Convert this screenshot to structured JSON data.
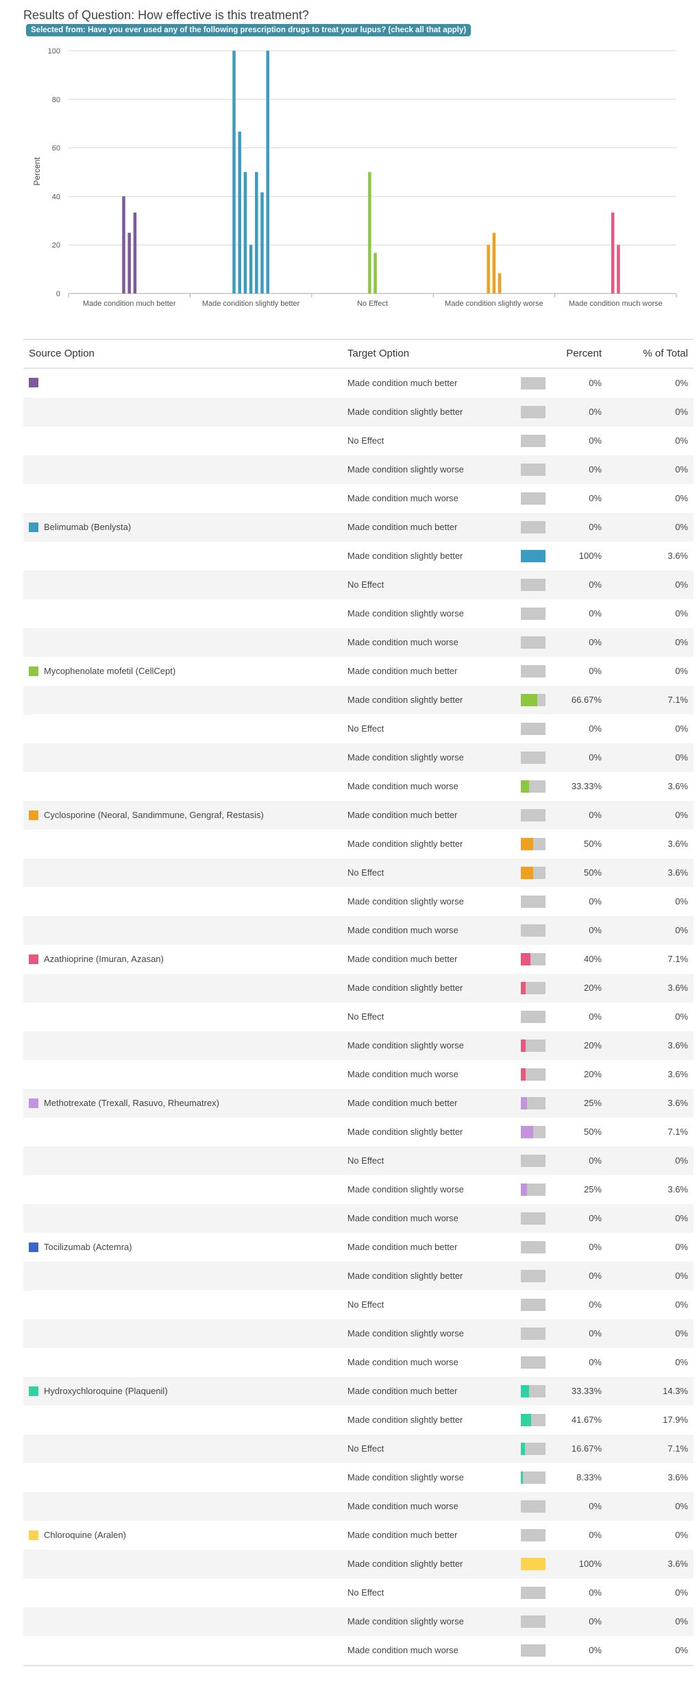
{
  "header": {
    "title": "Results of Question: How effective is this treatment?",
    "filter_pill": "Selected from: Have you ever used any of the following prescription drugs to treat your lupus? (check all that apply)"
  },
  "chart_data": {
    "type": "bar",
    "ylabel": "Percent",
    "ylim": [
      0,
      100
    ],
    "yticks": [
      "0",
      "20",
      "40",
      "60",
      "80",
      "100"
    ],
    "grid": true,
    "categories": [
      "Made condition much better",
      "Made condition slightly better",
      "No Effect",
      "Made condition slightly worse",
      "Made condition much worse"
    ],
    "series": [
      {
        "color": "#7c5a9b",
        "values": [
          0,
          0,
          0,
          0,
          0
        ]
      },
      {
        "color": "#3b9cc1",
        "values": [
          0,
          100,
          0,
          0,
          0
        ]
      },
      {
        "color": "#8dc63f",
        "values": [
          0,
          66.67,
          0,
          0,
          33.33
        ]
      },
      {
        "color": "#f0a020",
        "values": [
          0,
          50,
          50,
          0,
          0
        ]
      },
      {
        "color": "#e8587e",
        "values": [
          40,
          20,
          0,
          20,
          20
        ]
      },
      {
        "color": "#c493e0",
        "values": [
          25,
          50,
          0,
          25,
          0
        ]
      },
      {
        "color": "#3a66c8",
        "values": [
          0,
          0,
          0,
          0,
          0
        ]
      },
      {
        "color": "#2fd3a3",
        "values": [
          33.33,
          41.67,
          16.67,
          8.33,
          0
        ]
      },
      {
        "color": "#fcd24e",
        "values": [
          0,
          100,
          0,
          0,
          0
        ]
      }
    ],
    "bars_drawn": [
      {
        "group": 0,
        "color": "#7c5a9b",
        "values": [
          40,
          25,
          33.33
        ]
      },
      {
        "group": 1,
        "color": "#3b9cc1",
        "values": [
          100,
          66.67,
          50,
          20,
          50,
          41.67,
          100
        ]
      },
      {
        "group": 2,
        "color": "#8dc63f",
        "values": [
          50,
          16.67
        ]
      },
      {
        "group": 3,
        "color": "#f0a020",
        "values": [
          20,
          25,
          8.33
        ]
      },
      {
        "group": 4,
        "color": "#e8587e",
        "values": [
          33.33,
          20
        ]
      }
    ]
  },
  "table": {
    "headers": {
      "source": "Source Option",
      "target": "Target Option",
      "percent": "Percent",
      "total": "% of Total"
    },
    "groups": [
      {
        "source": "",
        "color": "#7c5a9b",
        "rows": [
          {
            "target": "Made condition much better",
            "percent": "0%",
            "total": "0%",
            "fill": 0
          },
          {
            "target": "Made condition slightly better",
            "percent": "0%",
            "total": "0%",
            "fill": 0
          },
          {
            "target": "No Effect",
            "percent": "0%",
            "total": "0%",
            "fill": 0
          },
          {
            "target": "Made condition slightly worse",
            "percent": "0%",
            "total": "0%",
            "fill": 0
          },
          {
            "target": "Made condition much worse",
            "percent": "0%",
            "total": "0%",
            "fill": 0
          }
        ]
      },
      {
        "source": "Belimumab (Benlysta)",
        "color": "#3b9cc1",
        "rows": [
          {
            "target": "Made condition much better",
            "percent": "0%",
            "total": "0%",
            "fill": 0
          },
          {
            "target": "Made condition slightly better",
            "percent": "100%",
            "total": "3.6%",
            "fill": 100
          },
          {
            "target": "No Effect",
            "percent": "0%",
            "total": "0%",
            "fill": 0
          },
          {
            "target": "Made condition slightly worse",
            "percent": "0%",
            "total": "0%",
            "fill": 0
          },
          {
            "target": "Made condition much worse",
            "percent": "0%",
            "total": "0%",
            "fill": 0
          }
        ]
      },
      {
        "source": "Mycophenolate mofetil (CellCept)",
        "color": "#8dc63f",
        "rows": [
          {
            "target": "Made condition much better",
            "percent": "0%",
            "total": "0%",
            "fill": 0
          },
          {
            "target": "Made condition slightly better",
            "percent": "66.67%",
            "total": "7.1%",
            "fill": 66.67
          },
          {
            "target": "No Effect",
            "percent": "0%",
            "total": "0%",
            "fill": 0
          },
          {
            "target": "Made condition slightly worse",
            "percent": "0%",
            "total": "0%",
            "fill": 0
          },
          {
            "target": "Made condition much worse",
            "percent": "33.33%",
            "total": "3.6%",
            "fill": 33.33
          }
        ]
      },
      {
        "source": "Cyclosporine (Neoral, Sandimmune, Gengraf, Restasis)",
        "color": "#f0a020",
        "rows": [
          {
            "target": "Made condition much better",
            "percent": "0%",
            "total": "0%",
            "fill": 0
          },
          {
            "target": "Made condition slightly better",
            "percent": "50%",
            "total": "3.6%",
            "fill": 50
          },
          {
            "target": "No Effect",
            "percent": "50%",
            "total": "3.6%",
            "fill": 50
          },
          {
            "target": "Made condition slightly worse",
            "percent": "0%",
            "total": "0%",
            "fill": 0
          },
          {
            "target": "Made condition much worse",
            "percent": "0%",
            "total": "0%",
            "fill": 0
          }
        ]
      },
      {
        "source": "Azathioprine (Imuran, Azasan)",
        "color": "#e8587e",
        "rows": [
          {
            "target": "Made condition much better",
            "percent": "40%",
            "total": "7.1%",
            "fill": 40
          },
          {
            "target": "Made condition slightly better",
            "percent": "20%",
            "total": "3.6%",
            "fill": 20
          },
          {
            "target": "No Effect",
            "percent": "0%",
            "total": "0%",
            "fill": 0
          },
          {
            "target": "Made condition slightly worse",
            "percent": "20%",
            "total": "3.6%",
            "fill": 20
          },
          {
            "target": "Made condition much worse",
            "percent": "20%",
            "total": "3.6%",
            "fill": 20
          }
        ]
      },
      {
        "source": "Methotrexate (Trexall, Rasuvo, Rheumatrex)",
        "color": "#c493e0",
        "rows": [
          {
            "target": "Made condition much better",
            "percent": "25%",
            "total": "3.6%",
            "fill": 25
          },
          {
            "target": "Made condition slightly better",
            "percent": "50%",
            "total": "7.1%",
            "fill": 50
          },
          {
            "target": "No Effect",
            "percent": "0%",
            "total": "0%",
            "fill": 0
          },
          {
            "target": "Made condition slightly worse",
            "percent": "25%",
            "total": "3.6%",
            "fill": 25
          },
          {
            "target": "Made condition much worse",
            "percent": "0%",
            "total": "0%",
            "fill": 0
          }
        ]
      },
      {
        "source": "Tocilizumab (Actemra)",
        "color": "#3a66c8",
        "rows": [
          {
            "target": "Made condition much better",
            "percent": "0%",
            "total": "0%",
            "fill": 0
          },
          {
            "target": "Made condition slightly better",
            "percent": "0%",
            "total": "0%",
            "fill": 0
          },
          {
            "target": "No Effect",
            "percent": "0%",
            "total": "0%",
            "fill": 0
          },
          {
            "target": "Made condition slightly worse",
            "percent": "0%",
            "total": "0%",
            "fill": 0
          },
          {
            "target": "Made condition much worse",
            "percent": "0%",
            "total": "0%",
            "fill": 0
          }
        ]
      },
      {
        "source": "Hydroxychloroquine (Plaquenil)",
        "color": "#2fd3a3",
        "rows": [
          {
            "target": "Made condition much better",
            "percent": "33.33%",
            "total": "14.3%",
            "fill": 33.33
          },
          {
            "target": "Made condition slightly better",
            "percent": "41.67%",
            "total": "17.9%",
            "fill": 41.67
          },
          {
            "target": "No Effect",
            "percent": "16.67%",
            "total": "7.1%",
            "fill": 16.67
          },
          {
            "target": "Made condition slightly worse",
            "percent": "8.33%",
            "total": "3.6%",
            "fill": 8.33
          },
          {
            "target": "Made condition much worse",
            "percent": "0%",
            "total": "0%",
            "fill": 0
          }
        ]
      },
      {
        "source": "Chloroquine (Aralen)",
        "color": "#fcd24e",
        "rows": [
          {
            "target": "Made condition much better",
            "percent": "0%",
            "total": "0%",
            "fill": 0
          },
          {
            "target": "Made condition slightly better",
            "percent": "100%",
            "total": "3.6%",
            "fill": 100
          },
          {
            "target": "No Effect",
            "percent": "0%",
            "total": "0%",
            "fill": 0
          },
          {
            "target": "Made condition slightly worse",
            "percent": "0%",
            "total": "0%",
            "fill": 0
          },
          {
            "target": "Made condition much worse",
            "percent": "0%",
            "total": "0%",
            "fill": 0
          }
        ]
      }
    ]
  }
}
